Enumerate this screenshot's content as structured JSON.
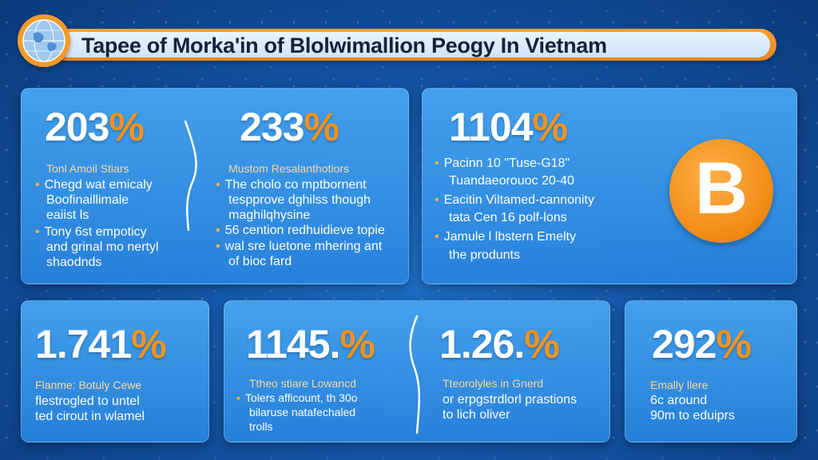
{
  "banner": {
    "title": "Tapee of Morka'in of Blolwimallion Peogy In Vietnam"
  },
  "cards": {
    "c1": {
      "value": "203",
      "unit": "%",
      "subtitle": "Tonl Amoil Stiars",
      "lines": [
        "Chegd wat emicaly",
        "Boofinaillimale",
        "eaiist ls",
        "Tony 6st empoticy",
        "and grinal mo nertyl",
        "shaodnds"
      ]
    },
    "c2": {
      "value": "233",
      "unit": "%",
      "subtitle": "Mustom Resalanthotiors",
      "lines": [
        "The cholo co mptbornent",
        "tespprove dghilss though",
        "maghilqhysine",
        "56 cention redhuidieve topie",
        "wal sre luetone mhering ant",
        "of bioc fard"
      ]
    },
    "c3": {
      "value": "1104",
      "unit": "%",
      "subtitle": "",
      "lines": [
        "Pacinn 10 \"Tuse-G18\"",
        "Tuandaeorouoc 20-40",
        "Eacitin Viltamed-cannonity",
        "tata Cen 16 polf-lons",
        "Jamule l lbstern Emelty",
        "the produnts"
      ]
    },
    "c4": {
      "value": "1.741",
      "unit": "%",
      "subtitle": "Flanme: Botuly Cewe",
      "lines": [
        "flestrogled to untel",
        "ted cirout in wlamel"
      ]
    },
    "c5": {
      "value": "1145.",
      "unit": "%",
      "subtitle": "Ttheo stiare Lowancd",
      "lines": [
        "Tolers afficount, th 30o",
        "bilaruse natafechaled",
        "trolls"
      ]
    },
    "c6": {
      "value": "1.26.",
      "unit": "%",
      "subtitle": "Tteorolyles in Gnerd",
      "lines": [
        "or erpgstrdlorl prastions",
        "to lich oliver"
      ]
    },
    "c7": {
      "value": "292",
      "unit": "%",
      "subtitle": "Emally llere",
      "lines": [
        "6c around",
        "90m to eduiprs"
      ]
    }
  },
  "bitcoin_symbol": "B",
  "colors": {
    "accent": "#f7931a",
    "background": "#114f9e",
    "card": "#3a9ae8"
  }
}
